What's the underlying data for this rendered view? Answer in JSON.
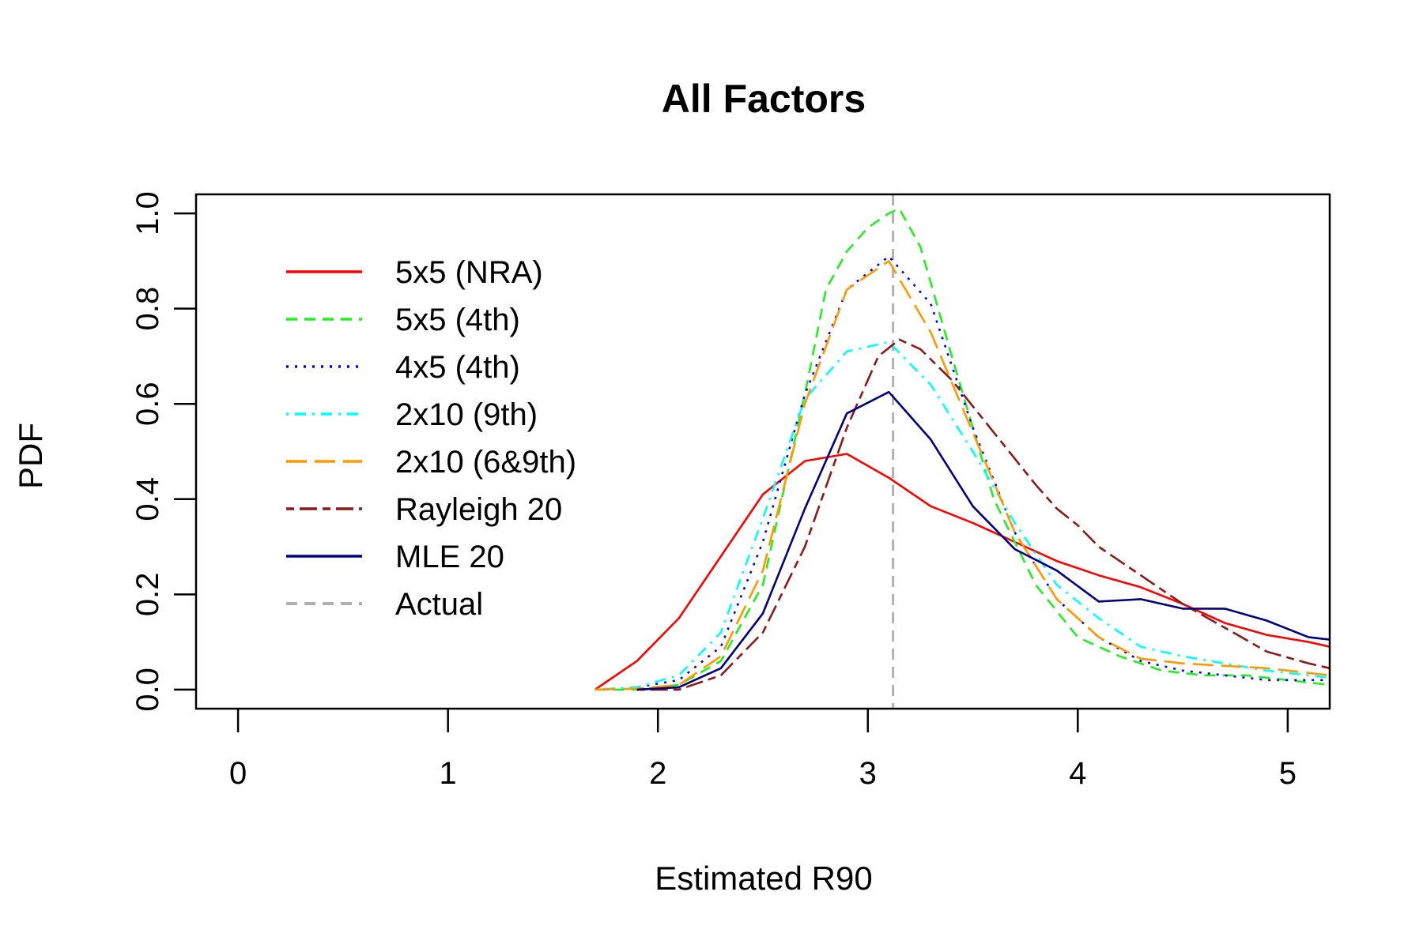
{
  "chart_data": {
    "type": "line",
    "title": "All Factors",
    "xlabel": "Estimated R90",
    "ylabel": "PDF",
    "xlim": [
      -0.2,
      5.2
    ],
    "ylim": [
      -0.04,
      1.04
    ],
    "x_ticks": [
      "0",
      "1",
      "2",
      "3",
      "4",
      "5"
    ],
    "y_ticks": [
      "0.0",
      "0.2",
      "0.4",
      "0.6",
      "0.8",
      "1.0"
    ],
    "grid": false,
    "legend_position": "top-left",
    "reference_line": {
      "name": "Actual",
      "x": 3.12,
      "color": "#b0b0b0",
      "dash": "dashed"
    },
    "series": [
      {
        "name": "5x5 (NRA)",
        "color": "#ff0000",
        "dash": "solid",
        "x": [
          1.7,
          1.9,
          2.1,
          2.3,
          2.5,
          2.7,
          2.9,
          3.1,
          3.3,
          3.5,
          3.7,
          3.9,
          4.1,
          4.3,
          4.5,
          4.7,
          4.9,
          5.1,
          5.2
        ],
        "y": [
          0.0,
          0.06,
          0.15,
          0.28,
          0.41,
          0.48,
          0.495,
          0.445,
          0.385,
          0.35,
          0.31,
          0.27,
          0.24,
          0.215,
          0.18,
          0.14,
          0.115,
          0.1,
          0.09
        ]
      },
      {
        "name": "5x5 (4th)",
        "color": "#22ee22",
        "dash": "dashed",
        "x": [
          1.7,
          1.9,
          2.1,
          2.3,
          2.5,
          2.7,
          2.8,
          2.9,
          3.0,
          3.1,
          3.15,
          3.25,
          3.4,
          3.6,
          3.8,
          4.0,
          4.2,
          4.4,
          4.6,
          4.8,
          5.0,
          5.2
        ],
        "y": [
          0.0,
          0.0,
          0.01,
          0.06,
          0.22,
          0.62,
          0.84,
          0.92,
          0.97,
          1.0,
          1.01,
          0.93,
          0.7,
          0.4,
          0.22,
          0.11,
          0.07,
          0.04,
          0.03,
          0.03,
          0.02,
          0.01
        ]
      },
      {
        "name": "4x5 (4th)",
        "color": "#0000ff",
        "dash": "dotted",
        "x": [
          1.7,
          1.9,
          2.1,
          2.3,
          2.5,
          2.7,
          2.9,
          3.1,
          3.3,
          3.5,
          3.7,
          3.9,
          4.1,
          4.3,
          4.5,
          4.7,
          4.9,
          5.1,
          5.2
        ],
        "y": [
          0.0,
          0.005,
          0.02,
          0.09,
          0.31,
          0.62,
          0.84,
          0.91,
          0.81,
          0.55,
          0.33,
          0.19,
          0.11,
          0.06,
          0.04,
          0.03,
          0.02,
          0.02,
          0.02
        ]
      },
      {
        "name": "2x10 (9th)",
        "color": "#00ffff",
        "dash": "dotdash",
        "x": [
          1.7,
          1.9,
          2.1,
          2.3,
          2.5,
          2.7,
          2.9,
          3.1,
          3.3,
          3.5,
          3.7,
          3.9,
          4.1,
          4.3,
          4.5,
          4.7,
          4.9,
          5.1,
          5.2
        ],
        "y": [
          0.0,
          0.005,
          0.03,
          0.12,
          0.36,
          0.61,
          0.71,
          0.73,
          0.64,
          0.5,
          0.35,
          0.22,
          0.15,
          0.09,
          0.07,
          0.055,
          0.04,
          0.03,
          0.025
        ]
      },
      {
        "name": "2x10 (6&9th)",
        "color": "#ff9900",
        "dash": "longdash",
        "x": [
          1.7,
          1.9,
          2.1,
          2.3,
          2.5,
          2.7,
          2.9,
          3.1,
          3.3,
          3.5,
          3.7,
          3.9,
          4.1,
          4.3,
          4.5,
          4.7,
          4.9,
          5.1,
          5.2
        ],
        "y": [
          0.0,
          0.002,
          0.01,
          0.07,
          0.25,
          0.6,
          0.84,
          0.9,
          0.75,
          0.54,
          0.33,
          0.19,
          0.11,
          0.065,
          0.055,
          0.05,
          0.045,
          0.035,
          0.03
        ]
      },
      {
        "name": "Rayleigh 20",
        "color": "#8b1a1a",
        "dash": "twodash",
        "x": [
          1.9,
          2.1,
          2.3,
          2.5,
          2.7,
          2.9,
          3.05,
          3.15,
          3.25,
          3.4,
          3.6,
          3.8,
          3.9,
          4.0,
          4.1,
          4.3,
          4.5,
          4.7,
          4.9,
          5.1,
          5.2
        ],
        "y": [
          0.0,
          0.0,
          0.03,
          0.12,
          0.3,
          0.55,
          0.7,
          0.735,
          0.715,
          0.65,
          0.54,
          0.43,
          0.38,
          0.345,
          0.3,
          0.24,
          0.18,
          0.13,
          0.08,
          0.055,
          0.045
        ]
      },
      {
        "name": "MLE 20",
        "color": "#000080",
        "dash": "solid",
        "x": [
          1.9,
          2.1,
          2.3,
          2.5,
          2.7,
          2.9,
          3.1,
          3.3,
          3.5,
          3.7,
          3.9,
          4.1,
          4.3,
          4.5,
          4.7,
          4.9,
          5.1,
          5.2
        ],
        "y": [
          0.0,
          0.005,
          0.045,
          0.16,
          0.38,
          0.58,
          0.625,
          0.525,
          0.385,
          0.295,
          0.25,
          0.185,
          0.19,
          0.17,
          0.17,
          0.145,
          0.11,
          0.105
        ]
      }
    ],
    "legend": [
      {
        "name": "5x5 (NRA)",
        "color": "#ff0000",
        "dash": "solid"
      },
      {
        "name": "5x5 (4th)",
        "color": "#22ee22",
        "dash": "dashed"
      },
      {
        "name": "4x5 (4th)",
        "color": "#0000ff",
        "dash": "dotted"
      },
      {
        "name": "2x10 (9th)",
        "color": "#00ffff",
        "dash": "dotdash"
      },
      {
        "name": "2x10 (6&9th)",
        "color": "#ff9900",
        "dash": "longdash"
      },
      {
        "name": "Rayleigh 20",
        "color": "#8b1a1a",
        "dash": "twodash"
      },
      {
        "name": "MLE 20",
        "color": "#000080",
        "dash": "solid"
      },
      {
        "name": "Actual",
        "color": "#b0b0b0",
        "dash": "dashed"
      }
    ]
  }
}
